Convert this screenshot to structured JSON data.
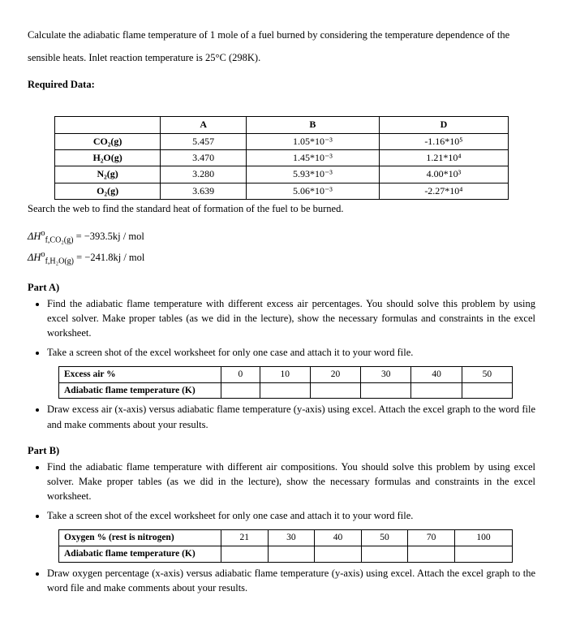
{
  "intro": "Calculate the adiabatic flame temperature of 1 mole of a fuel burned by considering the temperature dependence of the sensible heats. Inlet reaction temperature is 25°C (298K).",
  "required_label": "Required Data:",
  "data_table": {
    "headers": [
      "",
      "A",
      "B",
      "D"
    ],
    "rows": [
      [
        "CO₂(g)",
        "5.457",
        "1.05*10⁻³",
        "-1.16*10⁵"
      ],
      [
        "H₂O(g)",
        "3.470",
        "1.45*10⁻³",
        "1.21*10⁴"
      ],
      [
        "N₂(g)",
        "3.280",
        "5.93*10⁻³",
        "4.00*10³"
      ],
      [
        "O₂(g)",
        "3.639",
        "5.06*10⁻³",
        "-2.27*10⁴"
      ]
    ]
  },
  "table_note": "Search the web to find the standard heat of formation of the fuel to be burned.",
  "eq1_prefix": "ΔH",
  "eq1_sub": "f,CO₂(g)",
  "eq1_rhs": " = −393.5kj / mol",
  "eq2_prefix": "ΔH",
  "eq2_sub": "f,H₂O(g)",
  "eq2_rhs": " = −241.8kj / mol",
  "partA": {
    "title": "Part A)",
    "b1": "Find the adiabatic flame temperature with different excess air percentages. You should solve this problem by using excel solver. Make proper tables (as we did in the lecture), show the necessary formulas and constraints in the excel worksheet.",
    "b2": "Take a screen shot of the excel worksheet for only one case and attach it to your word file.",
    "table": {
      "row1_label": "Excess air %",
      "row1_vals": [
        "0",
        "10",
        "20",
        "30",
        "40",
        "50"
      ],
      "row2_label": "Adiabatic flame temperature (K)"
    },
    "b3": "Draw excess air (x-axis) versus adiabatic flame temperature (y-axis) using excel. Attach the excel graph to the word file and make comments about your results."
  },
  "partB": {
    "title": "Part B)",
    "b1": "Find the adiabatic flame temperature with different air compositions. You should solve this problem by using excel solver. Make proper tables (as we did in the lecture), show the necessary formulas and constraints in the excel worksheet.",
    "b2": "Take a screen shot of the excel worksheet for only one case and attach it to your word file.",
    "table": {
      "row1_label": "Oxygen % (rest is nitrogen)",
      "row1_vals": [
        "21",
        "30",
        "40",
        "50",
        "70",
        "100"
      ],
      "row2_label": "Adiabatic flame temperature (K)"
    },
    "b3": "Draw oxygen percentage (x-axis) versus adiabatic flame temperature (y-axis) using excel. Attach the excel graph to the word file and make comments about your results."
  }
}
